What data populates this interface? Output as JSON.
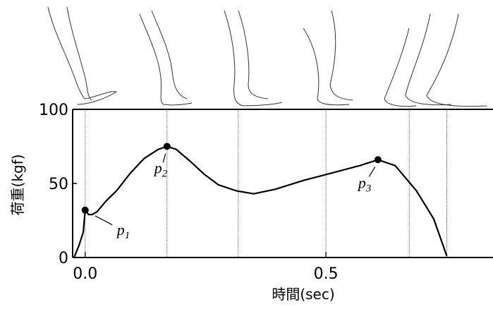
{
  "chart_data": {
    "type": "line",
    "xlabel": "時間(sec)",
    "ylabel": "荷重(kgf)",
    "x": [
      -0.023,
      -0.013,
      -0.004,
      0,
      0.007,
      0.015,
      0.025,
      0.043,
      0.065,
      0.094,
      0.123,
      0.152,
      0.17,
      0.189,
      0.218,
      0.248,
      0.277,
      0.314,
      0.35,
      0.394,
      0.453,
      0.512,
      0.57,
      0.608,
      0.644,
      0.688,
      0.724,
      0.751
    ],
    "series": [
      {
        "color": "#000000",
        "values": [
          0,
          8,
          17,
          32,
          29,
          29,
          31,
          38,
          45,
          57,
          67,
          73,
          75,
          73,
          65,
          56,
          49,
          45,
          43,
          46,
          52,
          57,
          62,
          66,
          62,
          45,
          26,
          1
        ]
      }
    ],
    "xlim": [
      -0.026,
      0.847
    ],
    "xticks": [
      {
        "value": 0,
        "label": "0.0"
      },
      0.5
    ],
    "ylim": [
      0,
      100
    ],
    "yticks": [
      0,
      50,
      100
    ],
    "frame_times": [
      0,
      0.17,
      0.318,
      0.5,
      0.673,
      0.751
    ],
    "annotations": [
      {
        "text": "p",
        "sub": "1",
        "x": 0,
        "y": 32
      },
      {
        "text": "p",
        "sub": "2",
        "x": 0.17,
        "y": 75
      },
      {
        "text": "p",
        "sub": "3",
        "x": 0.608,
        "y": 66
      }
    ]
  }
}
